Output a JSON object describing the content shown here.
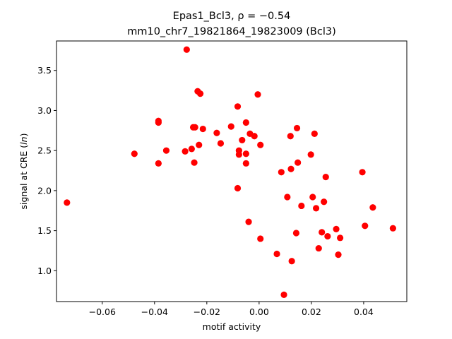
{
  "chart_data": {
    "type": "scatter",
    "title_line1": "Epas1_Bcl3, ρ = −0.54",
    "title_line2": "mm10_chr7_19821864_19823009 (Bcl3)",
    "xlabel": "motif activity",
    "ylabel_prefix": "signal at CRE (",
    "ylabel_italic": "ln",
    "ylabel_suffix": ")",
    "xlim": [
      -0.0775,
      0.0565
    ],
    "ylim": [
      0.615,
      3.868
    ],
    "x_ticks": [
      -0.06,
      -0.04,
      -0.02,
      0.0,
      0.02,
      0.04
    ],
    "x_tick_labels": [
      "−0.06",
      "−0.04",
      "−0.02",
      "0.00",
      "0.02",
      "0.04"
    ],
    "y_ticks": [
      1.0,
      1.5,
      2.0,
      2.5,
      3.0,
      3.5
    ],
    "y_tick_labels": [
      "1.0",
      "1.5",
      "2.0",
      "2.5",
      "3.0",
      "3.5"
    ],
    "marker_color": "#ff0000",
    "grid": false,
    "points": [
      {
        "x": -0.0735,
        "y": 1.85
      },
      {
        "x": -0.0477,
        "y": 2.46
      },
      {
        "x": -0.0385,
        "y": 2.87
      },
      {
        "x": -0.0385,
        "y": 2.85
      },
      {
        "x": -0.0385,
        "y": 2.34
      },
      {
        "x": -0.0355,
        "y": 2.5
      },
      {
        "x": -0.0277,
        "y": 3.76
      },
      {
        "x": -0.0283,
        "y": 2.49
      },
      {
        "x": -0.0258,
        "y": 2.52
      },
      {
        "x": -0.0252,
        "y": 2.79
      },
      {
        "x": -0.0245,
        "y": 2.79
      },
      {
        "x": -0.0248,
        "y": 2.35
      },
      {
        "x": -0.0235,
        "y": 3.24
      },
      {
        "x": -0.0225,
        "y": 3.21
      },
      {
        "x": -0.023,
        "y": 2.57
      },
      {
        "x": -0.0215,
        "y": 2.77
      },
      {
        "x": -0.0162,
        "y": 2.72
      },
      {
        "x": -0.0147,
        "y": 2.59
      },
      {
        "x": -0.0107,
        "y": 2.8
      },
      {
        "x": -0.0082,
        "y": 3.05
      },
      {
        "x": -0.0077,
        "y": 2.5
      },
      {
        "x": -0.0077,
        "y": 2.45
      },
      {
        "x": -0.0082,
        "y": 2.03
      },
      {
        "x": -0.0065,
        "y": 2.63
      },
      {
        "x": -0.005,
        "y": 2.85
      },
      {
        "x": -0.005,
        "y": 2.46
      },
      {
        "x": -0.005,
        "y": 2.34
      },
      {
        "x": -0.0035,
        "y": 2.71
      },
      {
        "x": -0.004,
        "y": 1.61
      },
      {
        "x": -0.0018,
        "y": 2.68
      },
      {
        "x": -0.0005,
        "y": 3.2
      },
      {
        "x": 0.0005,
        "y": 2.57
      },
      {
        "x": 0.0005,
        "y": 1.4
      },
      {
        "x": 0.0068,
        "y": 1.21
      },
      {
        "x": 0.0085,
        "y": 2.23
      },
      {
        "x": 0.0095,
        "y": 0.7
      },
      {
        "x": 0.0108,
        "y": 1.92
      },
      {
        "x": 0.012,
        "y": 2.68
      },
      {
        "x": 0.0122,
        "y": 2.27
      },
      {
        "x": 0.0125,
        "y": 1.12
      },
      {
        "x": 0.0145,
        "y": 2.78
      },
      {
        "x": 0.0148,
        "y": 2.35
      },
      {
        "x": 0.0142,
        "y": 1.47
      },
      {
        "x": 0.0162,
        "y": 1.81
      },
      {
        "x": 0.0198,
        "y": 2.45
      },
      {
        "x": 0.0212,
        "y": 2.71
      },
      {
        "x": 0.0205,
        "y": 1.92
      },
      {
        "x": 0.0218,
        "y": 1.78
      },
      {
        "x": 0.0228,
        "y": 1.28
      },
      {
        "x": 0.024,
        "y": 1.48
      },
      {
        "x": 0.0248,
        "y": 1.86
      },
      {
        "x": 0.0255,
        "y": 2.17
      },
      {
        "x": 0.0262,
        "y": 1.43
      },
      {
        "x": 0.0295,
        "y": 1.52
      },
      {
        "x": 0.0303,
        "y": 1.2
      },
      {
        "x": 0.031,
        "y": 1.41
      },
      {
        "x": 0.0395,
        "y": 2.23
      },
      {
        "x": 0.0405,
        "y": 1.56
      },
      {
        "x": 0.0435,
        "y": 1.79
      },
      {
        "x": 0.0512,
        "y": 1.53
      }
    ]
  }
}
